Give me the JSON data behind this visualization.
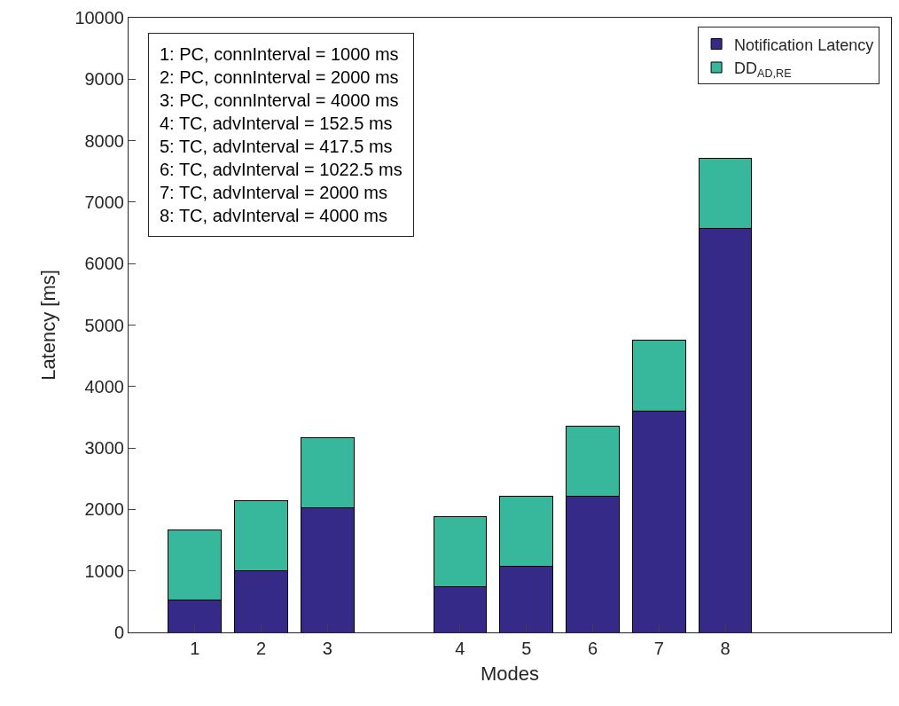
{
  "chart_data": {
    "type": "bar",
    "stacked": true,
    "xlabel": "Modes",
    "ylabel": "Latency [ms]",
    "categories": [
      "1",
      "2",
      "3",
      null,
      "4",
      "5",
      "6",
      "7",
      "8",
      null,
      null
    ],
    "series": [
      {
        "name": "Notification Latency",
        "color": "#352a87",
        "values": [
          520,
          1000,
          2030,
          null,
          750,
          1080,
          2220,
          3600,
          6580,
          null,
          null
        ]
      },
      {
        "name": "DD$_{AD,RE}$",
        "color": "#37b89d",
        "values": [
          1140,
          1140,
          1140,
          null,
          1130,
          1140,
          1140,
          1160,
          1130,
          null,
          null
        ]
      }
    ],
    "ylim": [
      0,
      10000
    ],
    "yticks": [
      0,
      1000,
      2000,
      3000,
      4000,
      5000,
      6000,
      7000,
      8000,
      9000,
      10000
    ],
    "grid": false,
    "legend": "top right",
    "annotations": [
      "1: PC, connInterval = 1000 ms",
      "2: PC, connInterval = 2000 ms",
      "3: PC, connInterval = 4000 ms",
      "4: TC, advInterval = 152.5 ms",
      "5: TC, advInterval = 417.5 ms",
      "6: TC, advInterval = 1022.5 ms",
      "7: TC, advInterval = 2000 ms",
      "8: TC, advInterval = 4000 ms"
    ]
  }
}
